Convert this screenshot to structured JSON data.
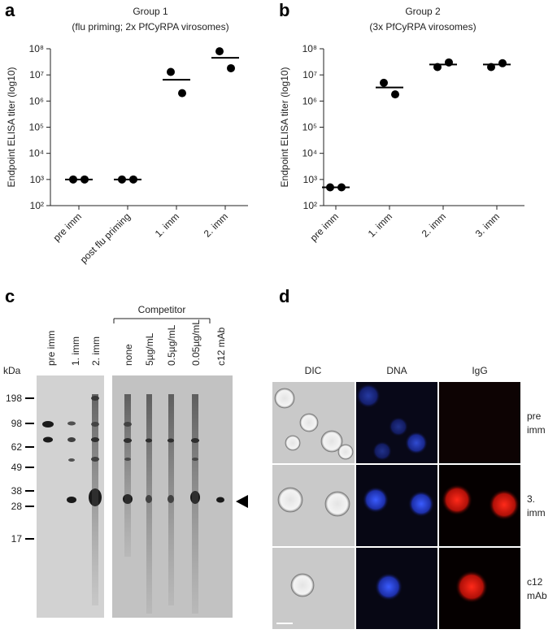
{
  "panel_labels": [
    "a",
    "b",
    "c",
    "d"
  ],
  "chart_data": [
    {
      "type": "scatter",
      "title": "Group 1",
      "subtitle": "(flu priming; 2x PfCyRPA virosomes)",
      "y_label": "Endpoint ELISA titer (log10)",
      "log_scale": true,
      "color": "#000000",
      "categories": [
        "pre imm",
        "post flu priming",
        "1. imm",
        "2. imm"
      ],
      "replicates": [
        [
          1000,
          1000
        ],
        [
          1000,
          1000
        ],
        [
          13000000,
          2000000
        ],
        [
          80000000,
          18000000
        ]
      ],
      "values": [
        1000,
        1000,
        6500000,
        45000000
      ],
      "ylim": [
        100,
        100000000
      ],
      "yticks": [
        {
          "value": 100,
          "label": "10²"
        },
        {
          "value": 1000,
          "label": "10³"
        },
        {
          "value": 10000,
          "label": "10⁴"
        },
        {
          "value": 100000,
          "label": "10⁵"
        },
        {
          "value": 1000000,
          "label": "10⁶"
        },
        {
          "value": 10000000,
          "label": "10⁷"
        },
        {
          "value": 100000000,
          "label": "10⁸"
        }
      ]
    },
    {
      "type": "scatter",
      "title": "Group 2",
      "subtitle": "(3x PfCyRPA virosomes)",
      "y_label": "Endpoint ELISA titer (log10)",
      "log_scale": true,
      "color": "#000000",
      "categories": [
        "pre imm",
        "1. imm",
        "2. imm",
        "3. imm"
      ],
      "replicates": [
        [
          500,
          500
        ],
        [
          5000000,
          1800000
        ],
        [
          20000000,
          30000000
        ],
        [
          20000000,
          28000000
        ]
      ],
      "values": [
        500,
        3300000,
        25000000,
        25000000
      ],
      "ylim": [
        100,
        100000000
      ],
      "yticks": [
        {
          "value": 100,
          "label": "10²"
        },
        {
          "value": 1000,
          "label": "10³"
        },
        {
          "value": 10000,
          "label": "10⁴"
        },
        {
          "value": 100000,
          "label": "10⁵"
        },
        {
          "value": 1000000,
          "label": "10⁶"
        },
        {
          "value": 10000000,
          "label": "10⁷"
        },
        {
          "value": 100000000,
          "label": "10⁸"
        }
      ]
    }
  ],
  "blot": {
    "unit": "kDa",
    "group_label": "Competitor",
    "lanes": [
      "pre imm",
      "1. imm",
      "2. imm",
      "none",
      "5µg/mL",
      "0.5µg/mL",
      "0.05µg/mL",
      "c12 mAb"
    ],
    "markers": [
      198,
      98,
      62,
      49,
      38,
      28,
      17
    ]
  },
  "microscopy": {
    "columns": [
      "DIC",
      "DNA",
      "IgG"
    ],
    "rows": [
      [
        "pre",
        "imm"
      ],
      [
        "3.",
        "imm"
      ],
      [
        "c12",
        "mAb"
      ]
    ]
  }
}
